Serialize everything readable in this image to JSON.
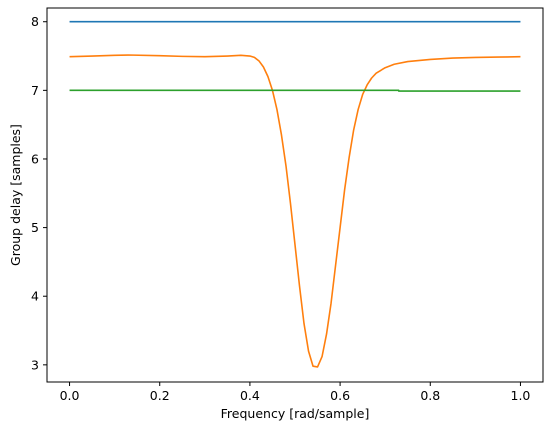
{
  "chart_data": {
    "type": "line",
    "xlabel": "Frequency [rad/sample]",
    "ylabel": "Group delay [samples]",
    "xlim": [
      -0.05,
      1.05
    ],
    "ylim": [
      2.75,
      8.2
    ],
    "xticks": [
      0.0,
      0.2,
      0.4,
      0.6,
      0.8,
      1.0
    ],
    "xtick_labels": [
      "0.0",
      "0.2",
      "0.4",
      "0.6",
      "0.8",
      "1.0"
    ],
    "yticks": [
      3,
      4,
      5,
      6,
      7,
      8
    ],
    "ytick_labels": [
      "3",
      "4",
      "5",
      "6",
      "7",
      "8"
    ],
    "grid": false,
    "legend": "none",
    "series": [
      {
        "color": "#1f77b4",
        "x": [
          0.0,
          1.0
        ],
        "y": [
          8.0,
          8.0
        ]
      },
      {
        "color": "#ff7f0e",
        "x": [
          0.0,
          0.05,
          0.1,
          0.13,
          0.2,
          0.25,
          0.3,
          0.35,
          0.38,
          0.4,
          0.41,
          0.42,
          0.43,
          0.44,
          0.45,
          0.46,
          0.47,
          0.48,
          0.49,
          0.5,
          0.51,
          0.52,
          0.53,
          0.54,
          0.55,
          0.56,
          0.57,
          0.58,
          0.59,
          0.6,
          0.61,
          0.62,
          0.63,
          0.64,
          0.65,
          0.66,
          0.67,
          0.68,
          0.7,
          0.72,
          0.75,
          0.8,
          0.85,
          0.9,
          0.95,
          1.0
        ],
        "y": [
          7.49,
          7.5,
          7.51,
          7.515,
          7.505,
          7.495,
          7.49,
          7.5,
          7.51,
          7.5,
          7.48,
          7.43,
          7.34,
          7.2,
          7.0,
          6.72,
          6.35,
          5.9,
          5.35,
          4.75,
          4.15,
          3.6,
          3.2,
          2.98,
          2.97,
          3.12,
          3.45,
          3.9,
          4.45,
          5.0,
          5.55,
          6.02,
          6.42,
          6.72,
          6.94,
          7.08,
          7.18,
          7.25,
          7.33,
          7.38,
          7.42,
          7.45,
          7.47,
          7.48,
          7.485,
          7.49
        ]
      },
      {
        "color": "#2ca02c",
        "x": [
          0.0,
          0.73,
          0.73,
          1.0
        ],
        "y": [
          7.0,
          7.0,
          6.99,
          6.99
        ]
      }
    ]
  }
}
